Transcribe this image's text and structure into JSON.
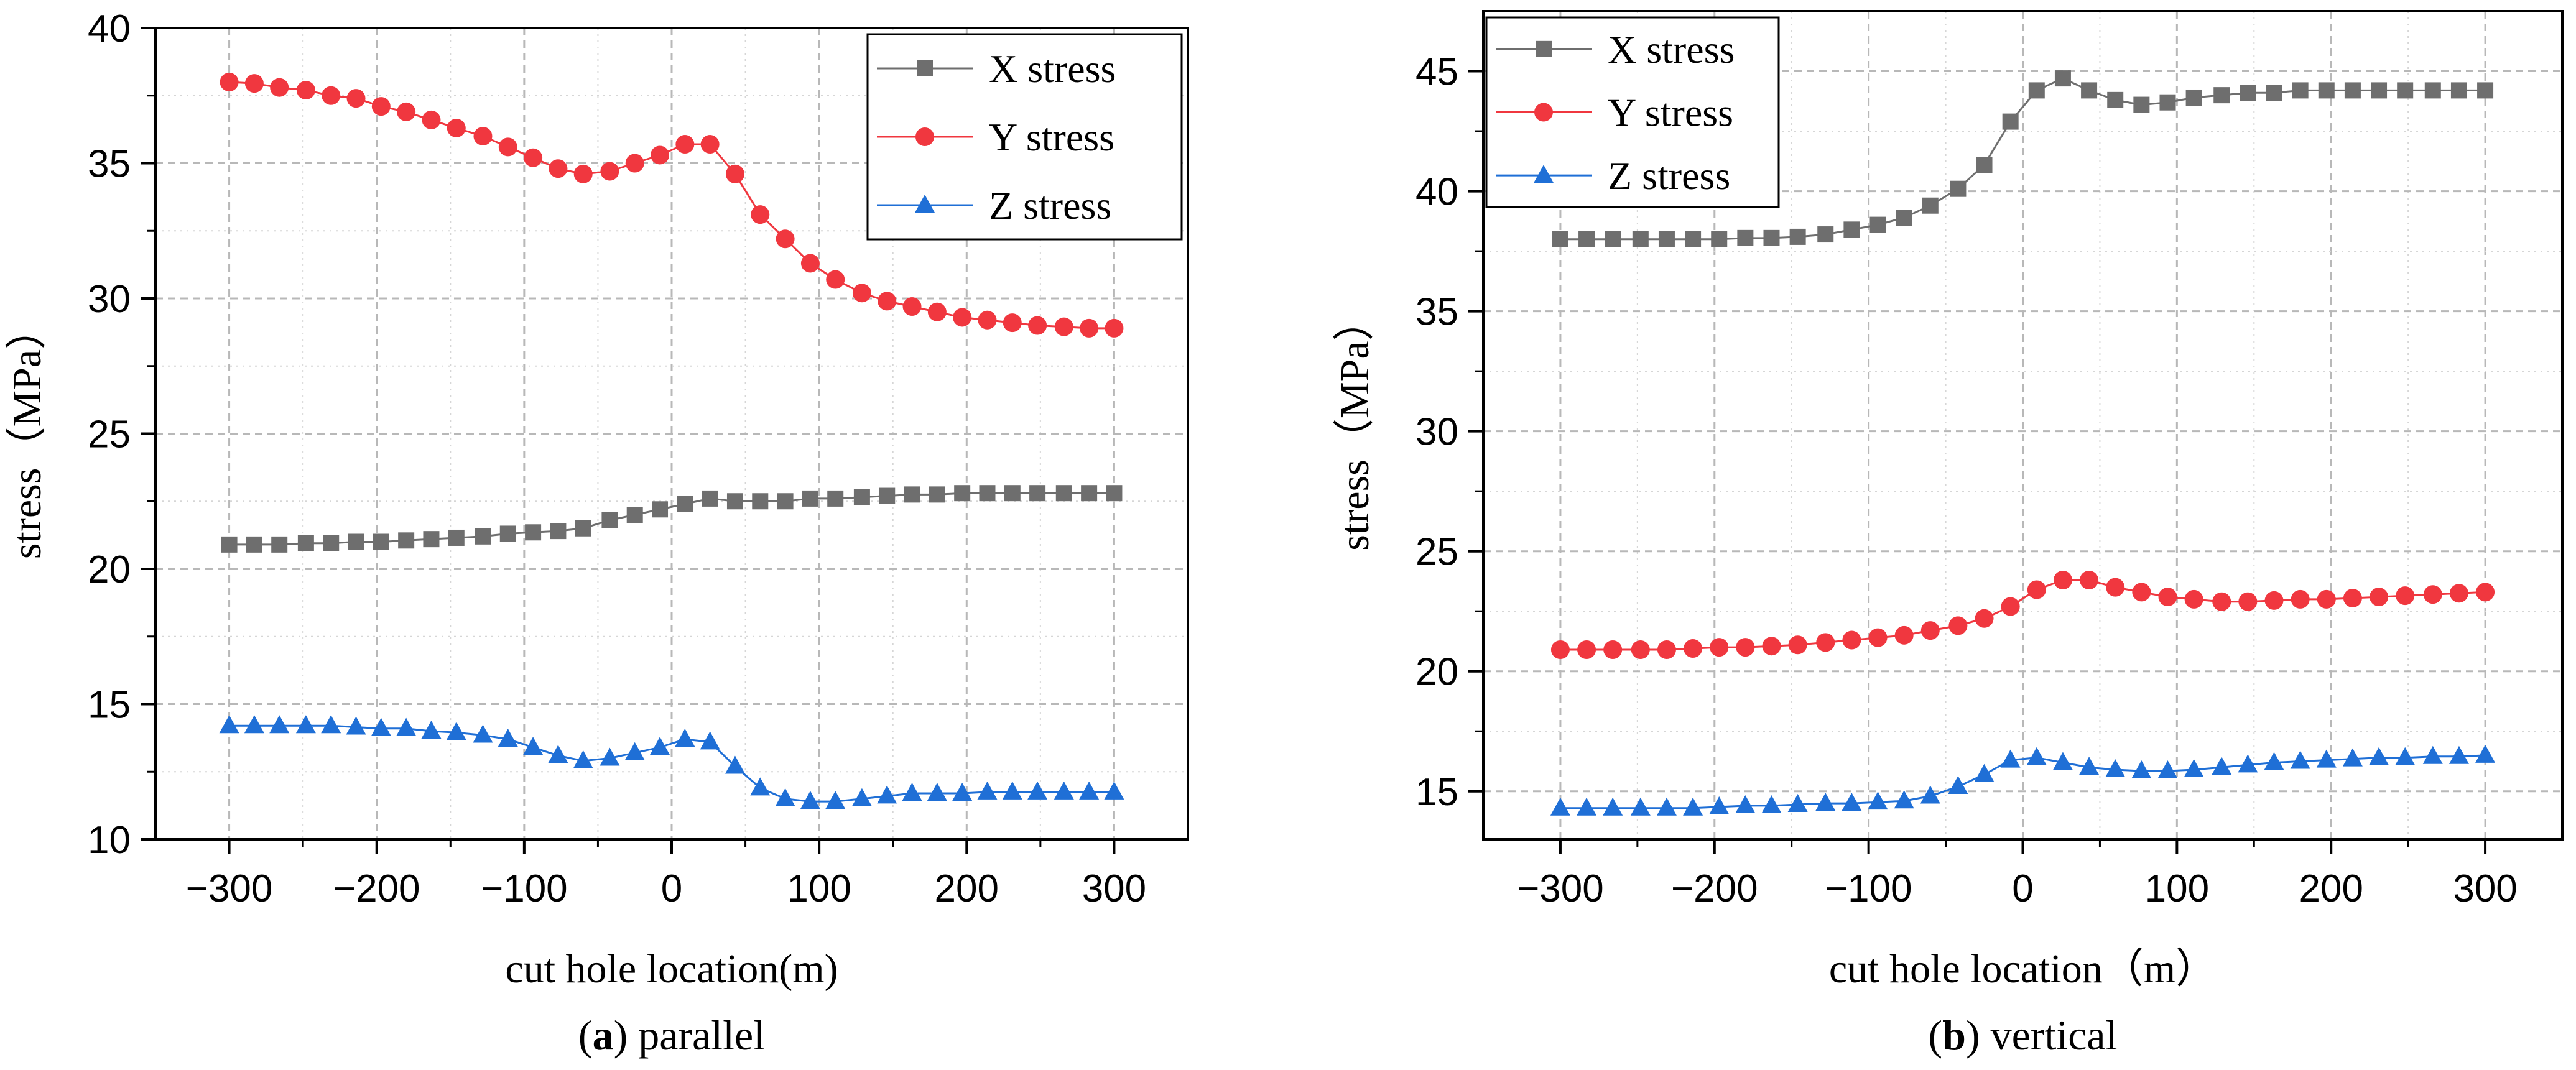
{
  "chart_data": [
    {
      "type": "line",
      "caption_letter": "a",
      "caption_text": "parallel",
      "xlabel": "cut hole location(m)",
      "ylabel": "stress（MPa）",
      "xlim": [
        -350,
        350
      ],
      "ylim": [
        10,
        40
      ],
      "xticks": [
        -300,
        -200,
        -100,
        0,
        100,
        200,
        300
      ],
      "xtick_labels": [
        "−300",
        "−200",
        "−100",
        "0",
        "100",
        "200",
        "300"
      ],
      "yticks": [
        10,
        15,
        20,
        25,
        30,
        35,
        40
      ],
      "grid": true,
      "legend_position": "top-right",
      "series": [
        {
          "name": "X stress",
          "color": "#6e6e6e",
          "marker": "square",
          "x": [
            -300,
            -283,
            -266,
            -248,
            -231,
            -214,
            -197,
            -180,
            -163,
            -146,
            -128,
            -111,
            -94,
            -77,
            -60,
            -42,
            -25,
            -8,
            9,
            26,
            43,
            60,
            77,
            94,
            111,
            129,
            146,
            163,
            180,
            197,
            214,
            231,
            248,
            266,
            283,
            300
          ],
          "values": [
            20.9,
            20.9,
            20.9,
            20.95,
            20.95,
            21.0,
            21.0,
            21.05,
            21.1,
            21.15,
            21.2,
            21.3,
            21.35,
            21.4,
            21.5,
            21.8,
            22.0,
            22.2,
            22.4,
            22.6,
            22.5,
            22.5,
            22.5,
            22.6,
            22.6,
            22.65,
            22.7,
            22.75,
            22.75,
            22.8,
            22.8,
            22.8,
            22.8,
            22.8,
            22.8,
            22.8
          ]
        },
        {
          "name": "Y stress",
          "color": "#f0373f",
          "marker": "circle",
          "x": [
            -300,
            -283,
            -266,
            -248,
            -231,
            -214,
            -197,
            -180,
            -163,
            -146,
            -128,
            -111,
            -94,
            -77,
            -60,
            -42,
            -25,
            -8,
            9,
            26,
            43,
            60,
            77,
            94,
            111,
            129,
            146,
            163,
            180,
            197,
            214,
            231,
            248,
            266,
            283,
            300
          ],
          "values": [
            38.0,
            37.95,
            37.8,
            37.7,
            37.5,
            37.4,
            37.1,
            36.9,
            36.6,
            36.3,
            36.0,
            35.6,
            35.2,
            34.8,
            34.6,
            34.7,
            35.0,
            35.3,
            35.7,
            35.7,
            34.6,
            33.1,
            32.2,
            31.3,
            30.7,
            30.2,
            29.9,
            29.7,
            29.5,
            29.3,
            29.2,
            29.1,
            29.0,
            28.95,
            28.9,
            28.9
          ]
        },
        {
          "name": "Z stress",
          "color": "#1f6fd6",
          "marker": "triangle",
          "x": [
            -300,
            -283,
            -266,
            -248,
            -231,
            -214,
            -197,
            -180,
            -163,
            -146,
            -128,
            -111,
            -94,
            -77,
            -60,
            -42,
            -25,
            -8,
            9,
            26,
            43,
            60,
            77,
            94,
            111,
            129,
            146,
            163,
            180,
            197,
            214,
            231,
            248,
            266,
            283,
            300
          ],
          "values": [
            14.2,
            14.2,
            14.2,
            14.2,
            14.2,
            14.15,
            14.1,
            14.1,
            14.0,
            13.95,
            13.85,
            13.7,
            13.4,
            13.1,
            12.9,
            13.0,
            13.2,
            13.4,
            13.7,
            13.6,
            12.7,
            11.9,
            11.5,
            11.4,
            11.4,
            11.5,
            11.6,
            11.7,
            11.7,
            11.7,
            11.75,
            11.75,
            11.75,
            11.75,
            11.75,
            11.75
          ]
        }
      ]
    },
    {
      "type": "line",
      "caption_letter": "b",
      "caption_text": "vertical",
      "xlabel": "cut hole location（m）",
      "ylabel": "stress（MPa）",
      "xlim": [
        -350,
        350
      ],
      "ylim": [
        13,
        47.5
      ],
      "xticks": [
        -300,
        -200,
        -100,
        0,
        100,
        200,
        300
      ],
      "xtick_labels": [
        "−300",
        "−200",
        "−100",
        "0",
        "100",
        "200",
        "300"
      ],
      "yticks": [
        15,
        20,
        25,
        30,
        35,
        40,
        45
      ],
      "grid": true,
      "legend_position": "top-left",
      "series": [
        {
          "name": "X stress",
          "color": "#6e6e6e",
          "marker": "square",
          "x": [
            -300,
            -283,
            -266,
            -248,
            -231,
            -214,
            -197,
            -180,
            -163,
            -146,
            -128,
            -111,
            -94,
            -77,
            -60,
            -42,
            -25,
            -8,
            9,
            26,
            43,
            60,
            77,
            94,
            111,
            129,
            146,
            163,
            180,
            197,
            214,
            231,
            248,
            266,
            283,
            300
          ],
          "values": [
            38.0,
            38.0,
            38.0,
            38.0,
            38.0,
            38.0,
            38.0,
            38.05,
            38.05,
            38.1,
            38.2,
            38.4,
            38.6,
            38.9,
            39.4,
            40.1,
            41.1,
            42.9,
            44.2,
            44.7,
            44.2,
            43.8,
            43.6,
            43.7,
            43.9,
            44.0,
            44.1,
            44.1,
            44.2,
            44.2,
            44.2,
            44.2,
            44.2,
            44.2,
            44.2,
            44.2
          ]
        },
        {
          "name": "Y stress",
          "color": "#f0373f",
          "marker": "circle",
          "x": [
            -300,
            -283,
            -266,
            -248,
            -231,
            -214,
            -197,
            -180,
            -163,
            -146,
            -128,
            -111,
            -94,
            -77,
            -60,
            -42,
            -25,
            -8,
            9,
            26,
            43,
            60,
            77,
            94,
            111,
            129,
            146,
            163,
            180,
            197,
            214,
            231,
            248,
            266,
            283,
            300
          ],
          "values": [
            20.9,
            20.9,
            20.9,
            20.9,
            20.9,
            20.95,
            21.0,
            21.0,
            21.05,
            21.1,
            21.2,
            21.3,
            21.4,
            21.5,
            21.7,
            21.9,
            22.2,
            22.7,
            23.4,
            23.8,
            23.8,
            23.5,
            23.3,
            23.1,
            23.0,
            22.9,
            22.9,
            22.95,
            23.0,
            23.0,
            23.05,
            23.1,
            23.15,
            23.2,
            23.25,
            23.3
          ]
        },
        {
          "name": "Z stress",
          "color": "#1f6fd6",
          "marker": "triangle",
          "x": [
            -300,
            -283,
            -266,
            -248,
            -231,
            -214,
            -197,
            -180,
            -163,
            -146,
            -128,
            -111,
            -94,
            -77,
            -60,
            -42,
            -25,
            -8,
            9,
            26,
            43,
            60,
            77,
            94,
            111,
            129,
            146,
            163,
            180,
            197,
            214,
            231,
            248,
            266,
            283,
            300
          ],
          "values": [
            14.3,
            14.3,
            14.3,
            14.3,
            14.3,
            14.3,
            14.35,
            14.4,
            14.4,
            14.45,
            14.5,
            14.5,
            14.55,
            14.6,
            14.8,
            15.2,
            15.7,
            16.3,
            16.4,
            16.2,
            16.0,
            15.9,
            15.85,
            15.85,
            15.9,
            16.0,
            16.1,
            16.2,
            16.25,
            16.3,
            16.35,
            16.4,
            16.4,
            16.45,
            16.45,
            16.5
          ]
        }
      ]
    }
  ]
}
